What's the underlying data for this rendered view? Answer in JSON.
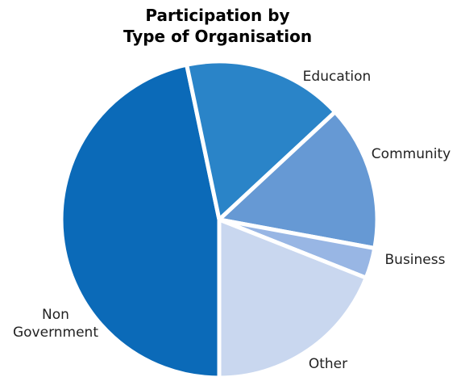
{
  "chart_data": {
    "type": "pie",
    "title_lines": [
      "Participation by",
      "Type of Organisation"
    ],
    "start_angle_deg": 180,
    "direction": "clockwise",
    "legend": "none",
    "slices": [
      {
        "label_lines": [
          "Non",
          "Government"
        ],
        "value": 46.7,
        "color": "#0b6ab8"
      },
      {
        "label_lines": [
          "Education"
        ],
        "value": 16.4,
        "color": "#2a84c8"
      },
      {
        "label_lines": [
          "Community"
        ],
        "value": 14.8,
        "color": "#6699d4"
      },
      {
        "label_lines": [
          "Business"
        ],
        "value": 3.1,
        "color": "#98b6e4"
      },
      {
        "label_lines": [
          "Other"
        ],
        "value": 19.0,
        "color": "#c9d7ef"
      }
    ]
  }
}
